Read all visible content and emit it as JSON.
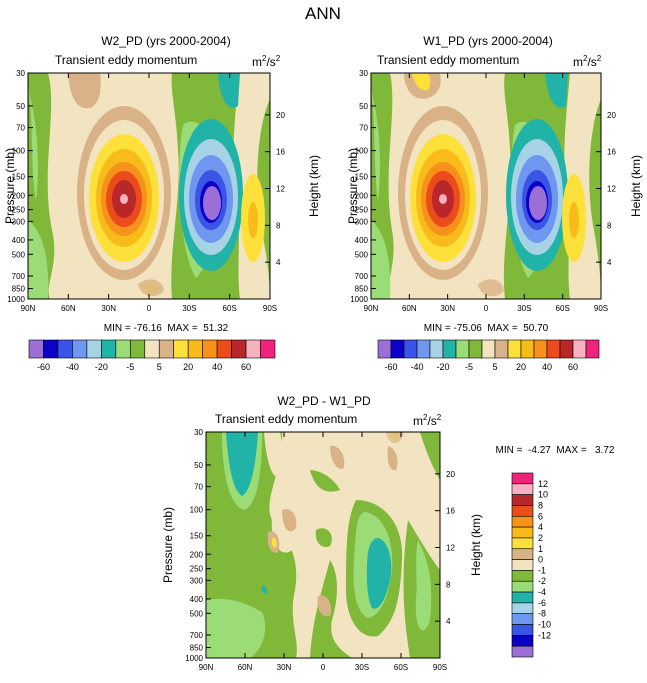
{
  "figure_title": "ANN",
  "colors": {
    "cbar_top": [
      "#9b6fd6",
      "#0a00c8",
      "#3a54e6",
      "#6f97ef",
      "#a7d3e6",
      "#22b3a8",
      "#9bdc76",
      "#80b83a",
      "#f3e4c1",
      "#d9b387",
      "#fde03a",
      "#f9bb1a",
      "#f6921c",
      "#ec4c1c",
      "#b8272a",
      "#f7b2c1",
      "#f0247c"
    ],
    "cbar_diff": [
      "#f0247c",
      "#f7b2c1",
      "#b8272a",
      "#ec4c1c",
      "#f6921c",
      "#f9bb1a",
      "#fde03a",
      "#d9b387",
      "#f3e4c1",
      "#80b83a",
      "#9bdc76",
      "#22b3a8",
      "#a7d3e6",
      "#6f97ef",
      "#3a54e6",
      "#0a00c8",
      "#9b6fd6"
    ]
  },
  "chart_data": [
    {
      "type": "heatmap",
      "title": "W2_PD (yrs 2000-2004)",
      "subtitle_left": "Transient eddy momentum",
      "units": "m²/s²",
      "units_base": "m",
      "units_sup1": "2",
      "units_mid": "/s",
      "units_sup2": "2",
      "ylabel": "Pressure (mb)",
      "ylabel_right": "Height (km)",
      "x_ticks": [
        "90N",
        "60N",
        "30N",
        "0",
        "30S",
        "60S",
        "90S"
      ],
      "y_ticks": [
        "30",
        "50",
        "70",
        "100",
        "150",
        "200",
        "250",
        "300",
        "400",
        "500",
        "700",
        "850",
        "1000"
      ],
      "y_ticks_right": [
        "20",
        "16",
        "12",
        "8",
        "4"
      ],
      "min_label": "MIN = -76.16  MAX =  51.32",
      "min": -76.16,
      "max": 51.32,
      "colorbar_labels": [
        "-60",
        "-40",
        "-20",
        "-5",
        "5",
        "20",
        "40",
        "60"
      ]
    },
    {
      "type": "heatmap",
      "title": "W1_PD (yrs 2000-2004)",
      "subtitle_left": "Transient eddy momentum",
      "units": "m²/s²",
      "units_base": "m",
      "units_sup1": "2",
      "units_mid": "/s",
      "units_sup2": "2",
      "ylabel": "Pressure (mb)",
      "ylabel_right": "Height (km)",
      "x_ticks": [
        "90N",
        "60N",
        "30N",
        "0",
        "30S",
        "60S",
        "90S"
      ],
      "y_ticks": [
        "30",
        "50",
        "70",
        "100",
        "150",
        "200",
        "250",
        "300",
        "400",
        "500",
        "700",
        "850",
        "1000"
      ],
      "y_ticks_right": [
        "20",
        "16",
        "12",
        "8",
        "4"
      ],
      "min_label": "MIN = -75.06  MAX =  50.70",
      "min": -75.06,
      "max": 50.7,
      "colorbar_labels": [
        "-60",
        "-40",
        "-20",
        "-5",
        "5",
        "20",
        "40",
        "60"
      ]
    },
    {
      "type": "heatmap",
      "title": "W2_PD - W1_PD",
      "subtitle_left": "Transient eddy momentum",
      "units": "m²/s²",
      "units_base": "m",
      "units_sup1": "2",
      "units_mid": "/s",
      "units_sup2": "2",
      "ylabel": "Pressure (mb)",
      "ylabel_right": "Height (km)",
      "x_ticks": [
        "90N",
        "60N",
        "30N",
        "0",
        "30S",
        "60S",
        "90S"
      ],
      "y_ticks": [
        "30",
        "50",
        "70",
        "100",
        "150",
        "200",
        "250",
        "300",
        "400",
        "500",
        "700",
        "850",
        "1000"
      ],
      "y_ticks_right": [
        "20",
        "16",
        "12",
        "8",
        "4"
      ],
      "min_label": "MIN =  -4.27  MAX =   3.72",
      "min": -4.27,
      "max": 3.72,
      "colorbar_labels": [
        "12",
        "10",
        "8",
        "6",
        "4",
        "2",
        "1",
        "0",
        "-1",
        "-2",
        "-4",
        "-6",
        "-8",
        "-10",
        "-12"
      ]
    }
  ]
}
